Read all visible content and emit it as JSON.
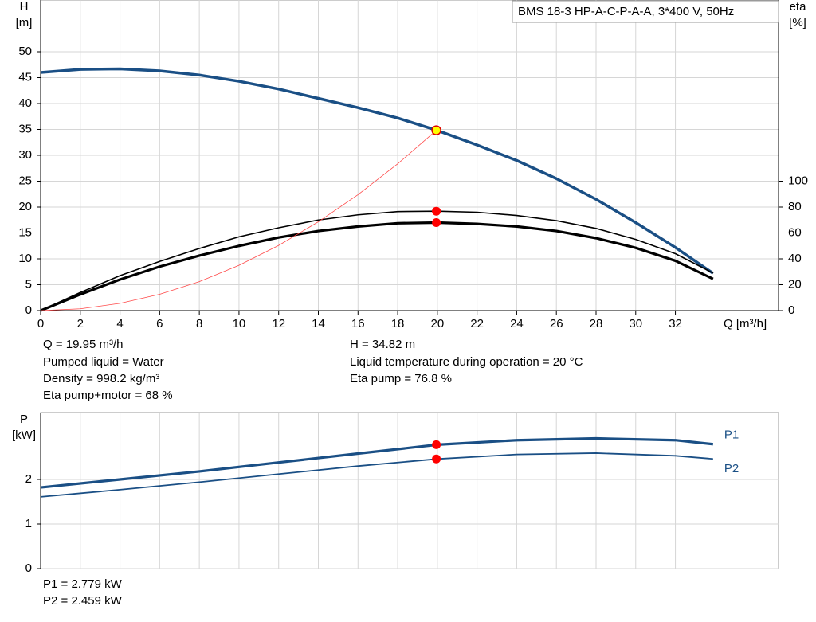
{
  "chart_data": [
    {
      "type": "line",
      "title": "BMS 18-3 HP-A-C-P-A-A, 3*400 V, 50Hz",
      "ylabel": [
        "H",
        "[m]"
      ],
      "y2label": [
        "eta",
        "[%]"
      ],
      "xlabel": "Q [m³/h]",
      "xlim": [
        0,
        37.2
      ],
      "xticks": [
        0,
        2,
        4,
        6,
        8,
        10,
        12,
        14,
        16,
        18,
        20,
        22,
        24,
        26,
        28,
        30,
        32
      ],
      "ylim": [
        0,
        60
      ],
      "yticks": [
        0,
        5,
        10,
        15,
        20,
        25,
        30,
        35,
        40,
        45,
        50
      ],
      "y2lim": [
        0,
        240
      ],
      "y2ticks": [
        0,
        20,
        40,
        60,
        80,
        100
      ],
      "grid": true,
      "series": [
        {
          "color": "#1a4f85",
          "width": 3.5,
          "x": [
            0,
            2,
            4,
            6,
            8,
            10,
            12,
            14,
            16,
            18,
            20,
            22,
            24,
            26,
            28,
            30,
            32,
            33.9
          ],
          "values": [
            46,
            46.6,
            46.7,
            46.3,
            45.5,
            44.3,
            42.8,
            41,
            39.2,
            37.2,
            34.8,
            32,
            29,
            25.5,
            21.5,
            17,
            12.2,
            7.2
          ]
        },
        {
          "color": "#000000",
          "width": 1.6,
          "axis": "y2",
          "x": [
            0,
            2,
            4,
            6,
            8,
            10,
            12,
            14,
            16,
            18,
            20,
            22,
            24,
            26,
            28,
            30,
            32,
            33.9
          ],
          "values": [
            0,
            14,
            27,
            38,
            48,
            57,
            64,
            70,
            74,
            76.5,
            76.8,
            76,
            73.5,
            69.5,
            63.5,
            55,
            44,
            29
          ]
        },
        {
          "color": "#000000",
          "width": 3.2,
          "axis": "y2",
          "x": [
            0,
            2,
            4,
            6,
            8,
            10,
            12,
            14,
            16,
            18,
            20,
            22,
            24,
            26,
            28,
            30,
            32,
            33.9
          ],
          "values": [
            0,
            12.5,
            24,
            34,
            42.5,
            50,
            56.5,
            61.5,
            65,
            67.5,
            68,
            67,
            65,
            61.5,
            56,
            48.5,
            38.5,
            24.5
          ]
        },
        {
          "color": "#ff4a4a",
          "width": 0.8,
          "x": [
            0,
            2,
            4,
            6,
            8,
            10,
            12,
            14,
            16,
            18,
            19.95
          ],
          "values": [
            0,
            0.35,
            1.4,
            3.15,
            5.6,
            8.75,
            12.6,
            17.15,
            22.4,
            28.35,
            34.82
          ]
        }
      ],
      "points": [
        {
          "x": 19.95,
          "y": 34.82,
          "color": "#ffff00"
        },
        {
          "x": 19.95,
          "y": 76.8,
          "axis": "y2",
          "color": "#ff0000"
        },
        {
          "x": 19.95,
          "y": 68,
          "axis": "y2",
          "color": "#ff0000"
        }
      ],
      "annotations": [
        "Q = 19.95 m³/h",
        "Pumped liquid = Water",
        "Density = 998.2 kg/m³",
        "Eta pump+motor = 68 %",
        "H = 34.82 m",
        "Liquid temperature during operation = 20 °C",
        "Eta pump = 76.8 %"
      ]
    },
    {
      "type": "line",
      "ylabel": [
        "P",
        "[kW]"
      ],
      "xlim": [
        0,
        37.2
      ],
      "xticks": [
        0,
        2,
        4,
        6,
        8,
        10,
        12,
        14,
        16,
        18,
        20,
        22,
        24,
        26,
        28,
        30,
        32
      ],
      "ylim": [
        0,
        3.5
      ],
      "yticks": [
        0,
        1,
        2
      ],
      "grid": true,
      "series": [
        {
          "name": "P1",
          "color": "#1a4f85",
          "width": 3.2,
          "x": [
            0,
            4,
            8,
            12,
            16,
            20,
            24,
            28,
            32,
            33.9
          ],
          "values": [
            1.82,
            2.0,
            2.18,
            2.38,
            2.58,
            2.779,
            2.88,
            2.92,
            2.88,
            2.79
          ]
        },
        {
          "name": "P2",
          "color": "#1a4f85",
          "width": 1.8,
          "x": [
            0,
            4,
            8,
            12,
            16,
            20,
            24,
            28,
            32,
            33.9
          ],
          "values": [
            1.61,
            1.77,
            1.94,
            2.12,
            2.3,
            2.459,
            2.56,
            2.59,
            2.53,
            2.46
          ]
        }
      ],
      "points": [
        {
          "x": 19.95,
          "y": 2.779,
          "color": "#ff0000"
        },
        {
          "x": 19.95,
          "y": 2.459,
          "color": "#ff0000"
        }
      ],
      "annotations": [
        "P1 = 2.779 kW",
        "P2 = 2.459 kW"
      ]
    }
  ]
}
